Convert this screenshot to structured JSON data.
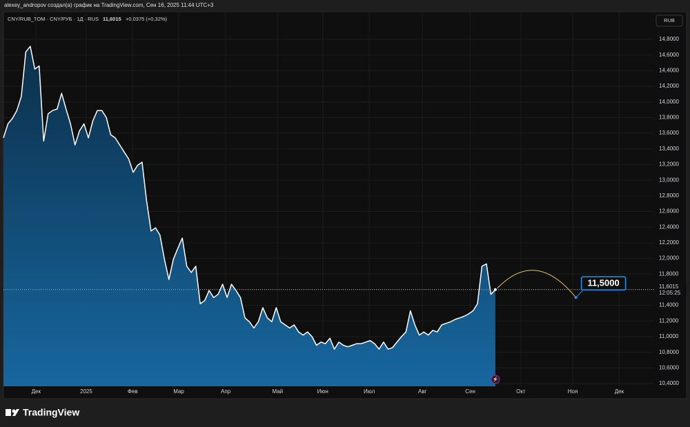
{
  "chart_data": {
    "type": "area",
    "title": "alexey_andropov создал(а) график на TradingView.com, Сен 16, 2025 11:44 UTC+3",
    "symbol": "CNY/RUB_TOM · CNY/РУБ · 1Д · RUS",
    "last_label": "11,6015",
    "change_label": "+0,0375 (+0,32%)",
    "currency": "RUB",
    "price_line": {
      "value": 11.6015,
      "label": "11,6015",
      "countdown": "12:05:25"
    },
    "target": {
      "x": 128,
      "value": 11.5,
      "label": "11,5000"
    },
    "line_color": "#ffffff",
    "fill_colors": [
      "#0c2f4a",
      "#17679f"
    ],
    "values": [
      13.54,
      13.72,
      13.79,
      13.89,
      14.07,
      14.64,
      14.71,
      14.42,
      14.46,
      13.5,
      13.85,
      13.89,
      13.91,
      14.11,
      13.91,
      13.72,
      13.45,
      13.63,
      13.72,
      13.54,
      13.76,
      13.89,
      13.89,
      13.8,
      13.58,
      13.54,
      13.45,
      13.36,
      13.27,
      13.1,
      13.19,
      13.23,
      12.74,
      12.35,
      12.39,
      12.3,
      11.99,
      11.73,
      11.99,
      12.13,
      12.26,
      11.9,
      11.82,
      11.9,
      11.42,
      11.46,
      11.59,
      11.5,
      11.54,
      11.67,
      11.5,
      11.67,
      11.59,
      11.5,
      11.24,
      11.19,
      11.11,
      11.19,
      11.37,
      11.24,
      11.19,
      11.37,
      11.19,
      11.15,
      11.11,
      11.15,
      11.06,
      11.02,
      11.06,
      11.0,
      10.89,
      10.93,
      10.91,
      10.98,
      10.84,
      10.93,
      10.89,
      10.87,
      10.89,
      10.91,
      10.91,
      10.93,
      10.95,
      10.91,
      10.84,
      10.93,
      10.84,
      10.86,
      10.93,
      11.0,
      11.06,
      11.33,
      11.15,
      11.02,
      11.06,
      11.02,
      11.08,
      11.06,
      11.15,
      11.17,
      11.19,
      11.22,
      11.24,
      11.26,
      11.29,
      11.33,
      11.42,
      11.9,
      11.93,
      11.54,
      11.6015
    ],
    "xlim": [
      0,
      145.5
    ],
    "ylim": [
      10.365,
      15.153
    ],
    "grid": true,
    "xticks": [
      {
        "value": 7.3,
        "label": "Дек"
      },
      {
        "value": 18.5,
        "label": "2025"
      },
      {
        "value": 28.9,
        "label": "Фев"
      },
      {
        "value": 39.2,
        "label": "Мар"
      },
      {
        "value": 49.7,
        "label": "Апр"
      },
      {
        "value": 61.3,
        "label": "Май"
      },
      {
        "value": 71.4,
        "label": "Июн"
      },
      {
        "value": 81.8,
        "label": "Июл"
      },
      {
        "value": 93.7,
        "label": "Авг"
      },
      {
        "value": 104.4,
        "label": "Сен"
      },
      {
        "value": 115.7,
        "label": "Окт"
      },
      {
        "value": 127.3,
        "label": "Ноя"
      },
      {
        "value": 137.7,
        "label": "Дек"
      }
    ],
    "yticks": [
      {
        "value": 10.4,
        "label": "10,4000"
      },
      {
        "value": 10.6,
        "label": "10,6000"
      },
      {
        "value": 10.8,
        "label": "10,8000"
      },
      {
        "value": 11,
        "label": "11,0000"
      },
      {
        "value": 11.2,
        "label": "11,2000"
      },
      {
        "value": 11.4,
        "label": "11,4000"
      },
      {
        "value": 11.6,
        "label": "11,6000"
      },
      {
        "value": 11.8,
        "label": "11,8000"
      },
      {
        "value": 12,
        "label": "12,0000"
      },
      {
        "value": 12.2,
        "label": "12,2000"
      },
      {
        "value": 12.4,
        "label": "12,4000"
      },
      {
        "value": 12.6,
        "label": "12,6000"
      },
      {
        "value": 12.8,
        "label": "12,8000"
      },
      {
        "value": 13,
        "label": "13,0000"
      },
      {
        "value": 13.2,
        "label": "13,2000"
      },
      {
        "value": 13.4,
        "label": "13,4000"
      },
      {
        "value": 13.6,
        "label": "13,6000"
      },
      {
        "value": 13.8,
        "label": "13,8000"
      },
      {
        "value": 14,
        "label": "14,0000"
      },
      {
        "value": 14.2,
        "label": "14,2000"
      },
      {
        "value": 14.4,
        "label": "14,4000"
      },
      {
        "value": 14.6,
        "label": "14,6000"
      },
      {
        "value": 14.8,
        "label": "14,8000"
      }
    ]
  },
  "footer": {
    "brand": "TradingView"
  }
}
